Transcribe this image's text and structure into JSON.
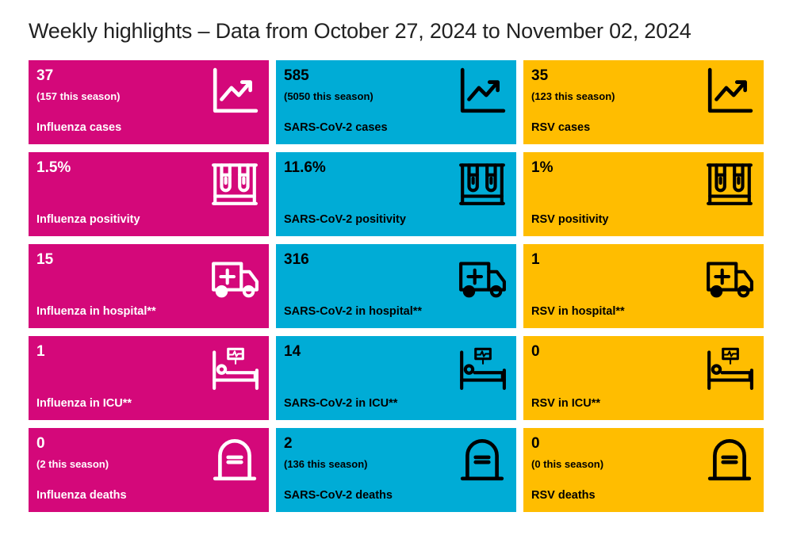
{
  "header": {
    "title": "Weekly highlights – Data from October 27, 2024 to November 02, 2024"
  },
  "colors": {
    "influenza": "#d4087a",
    "sars_cov_2": "#00acd6",
    "rsv": "#ffbd00"
  },
  "rows": [
    {
      "icon": "trend-chart-icon",
      "cells": [
        {
          "value": "37",
          "sub": "(157 this season)",
          "label": "Influenza cases"
        },
        {
          "value": "585",
          "sub": "(5050 this season)",
          "label": "SARS-CoV-2 cases"
        },
        {
          "value": "35",
          "sub": "(123 this season)",
          "label": "RSV cases"
        }
      ]
    },
    {
      "icon": "test-tubes-icon",
      "cells": [
        {
          "value": "1.5%",
          "sub": "",
          "label": "Influenza positivity"
        },
        {
          "value": "11.6%",
          "sub": "",
          "label": "SARS-CoV-2 positivity"
        },
        {
          "value": "1%",
          "sub": "",
          "label": "RSV positivity"
        }
      ]
    },
    {
      "icon": "ambulance-icon",
      "cells": [
        {
          "value": "15",
          "sub": "",
          "label": "Influenza in hospital**"
        },
        {
          "value": "316",
          "sub": "",
          "label": "SARS-CoV-2 in hospital**"
        },
        {
          "value": "1",
          "sub": "",
          "label": "RSV in hospital**"
        }
      ]
    },
    {
      "icon": "hospital-bed-icon",
      "cells": [
        {
          "value": "1",
          "sub": "",
          "label": "Influenza in ICU**"
        },
        {
          "value": "14",
          "sub": "",
          "label": "SARS-CoV-2 in ICU**"
        },
        {
          "value": "0",
          "sub": "",
          "label": "RSV in ICU**"
        }
      ]
    },
    {
      "icon": "tombstone-icon",
      "cells": [
        {
          "value": "0",
          "sub": "(2 this season)",
          "label": "Influenza deaths"
        },
        {
          "value": "2",
          "sub": "(136 this season)",
          "label": "SARS-CoV-2 deaths"
        },
        {
          "value": "0",
          "sub": "(0 this season)",
          "label": "RSV deaths"
        }
      ]
    }
  ]
}
